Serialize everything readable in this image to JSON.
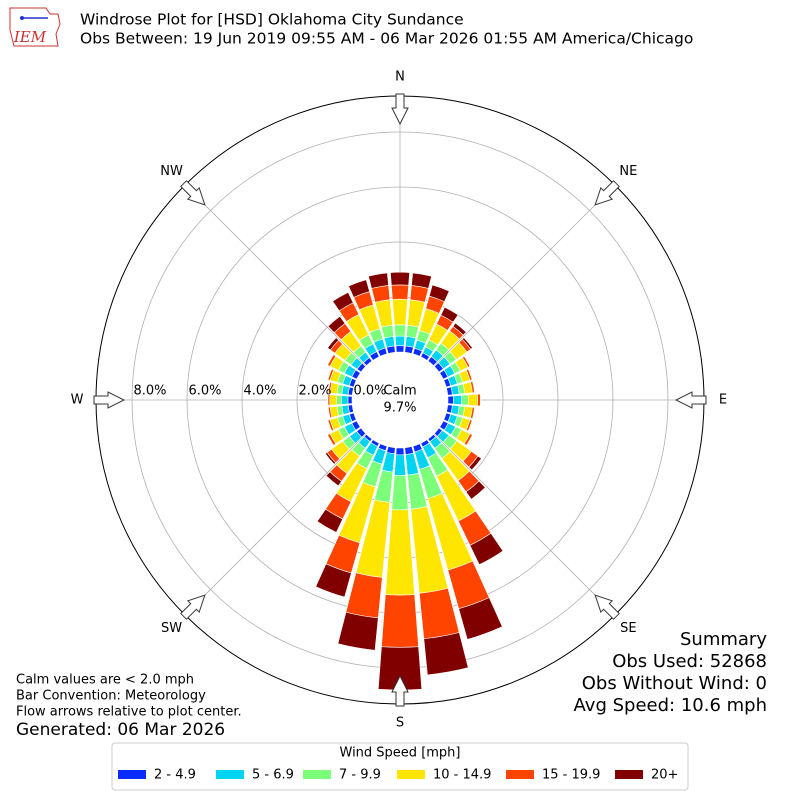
{
  "chart_data": {
    "type": "windrose",
    "title": "Windrose Plot for [HSD] Oklahoma City Sundance",
    "subtitle": "Obs Between: 19 Jun 2019 09:55 AM - 06 Mar 2026 01:55 AM America/Chicago",
    "logo": "IEM",
    "x": [
      0,
      10,
      20,
      30,
      40,
      50,
      60,
      70,
      80,
      90,
      100,
      110,
      120,
      130,
      140,
      150,
      160,
      170,
      180,
      190,
      200,
      210,
      220,
      230,
      240,
      250,
      260,
      270,
      280,
      290,
      300,
      310,
      320,
      330,
      340,
      350
    ],
    "xticks": [
      {
        "value": 0,
        "label": "N"
      },
      {
        "value": 45,
        "label": "NE"
      },
      {
        "value": 90,
        "label": "E"
      },
      {
        "value": 135,
        "label": "SE"
      },
      {
        "value": 180,
        "label": "S"
      },
      {
        "value": 225,
        "label": "SW"
      },
      {
        "value": 270,
        "label": "W"
      },
      {
        "value": 315,
        "label": "NW"
      }
    ],
    "ylim": [
      0,
      9.31
    ],
    "yticks": [
      {
        "value": 0,
        "label": "0.0%"
      },
      {
        "value": 2,
        "label": "2.0%"
      },
      {
        "value": 4,
        "label": "4.0%"
      },
      {
        "value": 6,
        "label": "6.0%"
      },
      {
        "value": 8,
        "label": "8.0%"
      }
    ],
    "grid": true,
    "calm_label": "Calm",
    "calm_value": 9.7,
    "calm_value_label": "9.7%",
    "legend_title": "Wind Speed [mph]",
    "series": [
      {
        "name": "2 - 4.9",
        "color": "#0a2dff",
        "values": [
          0.23,
          0.23,
          0.21,
          0.16,
          0.2,
          0.2,
          0.19,
          0.17,
          0.17,
          0.2,
          0.17,
          0.17,
          0.2,
          0.15,
          0.12,
          0.15,
          0.22,
          0.25,
          0.25,
          0.22,
          0.17,
          0.13,
          0.12,
          0.2,
          0.2,
          0.17,
          0.15,
          0.15,
          0.15,
          0.17,
          0.2,
          0.18,
          0.16,
          0.21,
          0.22,
          0.23
        ]
      },
      {
        "name": "5 - 6.9",
        "color": "#00d4f0",
        "values": [
          0.35,
          0.35,
          0.31,
          0.24,
          0.3,
          0.3,
          0.28,
          0.25,
          0.25,
          0.3,
          0.25,
          0.25,
          0.3,
          0.3,
          0.3,
          0.44,
          0.66,
          0.75,
          0.75,
          0.67,
          0.51,
          0.36,
          0.3,
          0.32,
          0.3,
          0.25,
          0.23,
          0.23,
          0.23,
          0.25,
          0.3,
          0.27,
          0.24,
          0.31,
          0.34,
          0.35
        ]
      },
      {
        "name": "7 - 9.9",
        "color": "#7cff79",
        "values": [
          0.41,
          0.41,
          0.36,
          0.28,
          0.3,
          0.28,
          0.22,
          0.2,
          0.2,
          0.24,
          0.2,
          0.2,
          0.24,
          0.35,
          0.45,
          0.74,
          1.1,
          1.25,
          1.25,
          1.11,
          0.86,
          0.54,
          0.35,
          0.3,
          0.24,
          0.2,
          0.18,
          0.18,
          0.18,
          0.2,
          0.24,
          0.27,
          0.28,
          0.36,
          0.39,
          0.41
        ]
      },
      {
        "name": "10 - 14.9",
        "color": "#ffe600",
        "values": [
          0.93,
          0.93,
          0.83,
          0.64,
          0.55,
          0.47,
          0.31,
          0.28,
          0.28,
          0.34,
          0.28,
          0.28,
          0.34,
          0.65,
          1.0,
          1.81,
          2.7,
          3.07,
          3.1,
          2.74,
          2.11,
          1.33,
          0.78,
          0.5,
          0.34,
          0.28,
          0.25,
          0.25,
          0.25,
          0.28,
          0.34,
          0.45,
          0.64,
          0.83,
          0.9,
          0.93
        ]
      },
      {
        "name": "15 - 19.9",
        "color": "#ff4400",
        "values": [
          0.52,
          0.52,
          0.47,
          0.36,
          0.2,
          0.17,
          0.08,
          0.08,
          0.08,
          0.1,
          0.08,
          0.08,
          0.1,
          0.3,
          0.5,
          0.98,
          1.46,
          1.66,
          1.9,
          1.48,
          1.14,
          0.7,
          0.35,
          0.2,
          0.1,
          0.08,
          0.07,
          0.07,
          0.07,
          0.08,
          0.1,
          0.2,
          0.36,
          0.47,
          0.5,
          0.52
        ]
      },
      {
        "name": "20+",
        "color": "#800000",
        "values": [
          0.46,
          0.46,
          0.42,
          0.32,
          0.15,
          0.08,
          0.02,
          0.02,
          0.02,
          0.02,
          0.02,
          0.02,
          0.02,
          0.15,
          0.33,
          0.78,
          1.16,
          1.32,
          1.55,
          1.18,
          0.91,
          0.54,
          0.2,
          0.08,
          0.02,
          0.02,
          0.02,
          0.02,
          0.02,
          0.02,
          0.02,
          0.13,
          0.32,
          0.42,
          0.45,
          0.46
        ]
      }
    ],
    "summary": [
      "Summary",
      "Obs Used: 52868",
      "Obs Without Wind: 0",
      "Avg Speed: 10.6 mph"
    ],
    "notes": [
      "Calm values are < 2.0 mph",
      "Bar Convention: Meteorology",
      "Flow arrows relative to plot center."
    ],
    "generated": "Generated: 06 Mar 2026"
  }
}
